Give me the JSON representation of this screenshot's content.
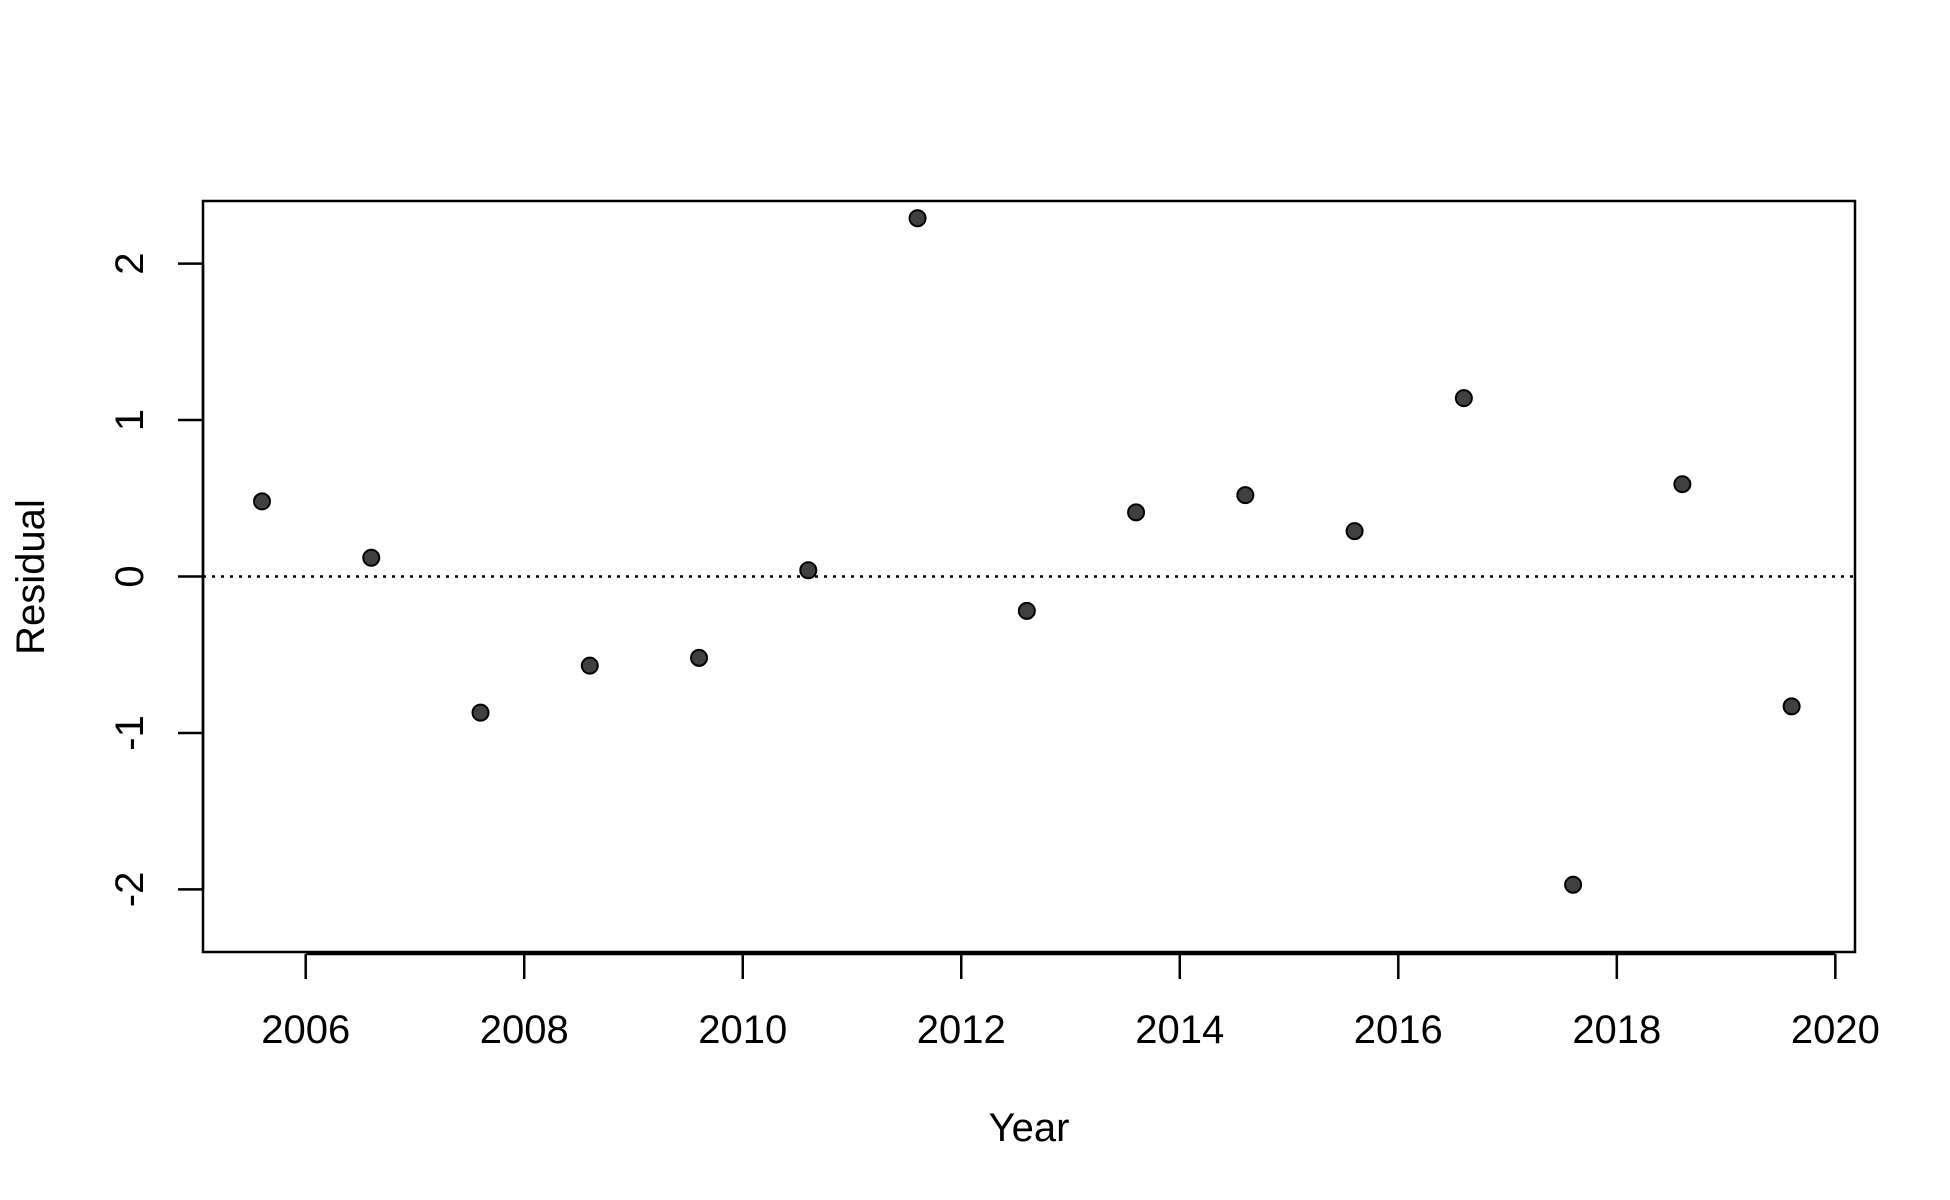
{
  "chart_data": {
    "type": "scatter",
    "title": "",
    "xlabel": "Year",
    "ylabel": "Residual",
    "xlim": [
      2005.06,
      2020.18
    ],
    "ylim": [
      -2.4,
      2.4
    ],
    "x_ticks": [
      2006,
      2008,
      2010,
      2012,
      2014,
      2016,
      2018,
      2020
    ],
    "x_tick_labels": [
      "2006",
      "2008",
      "2010",
      "2012",
      "2014",
      "2016",
      "2018",
      "2020"
    ],
    "y_ticks": [
      -2,
      -1,
      0,
      1,
      2
    ],
    "y_tick_labels": [
      "-2",
      "-1",
      "0",
      "1",
      "2"
    ],
    "reference_line": {
      "y": 0,
      "style": "dotted"
    },
    "grid": false,
    "legend": "none",
    "point_color": "#404040",
    "series": [
      {
        "x": [
          2005.6,
          2006.6,
          2007.6,
          2008.6,
          2009.6,
          2010.6,
          2011.6,
          2012.6,
          2013.6,
          2014.6,
          2015.6,
          2016.6,
          2017.6,
          2018.6,
          2019.6
        ],
        "y": [
          0.48,
          0.12,
          -0.87,
          -0.57,
          -0.52,
          0.04,
          2.29,
          -0.22,
          0.41,
          0.52,
          0.29,
          1.14,
          -1.97,
          0.59,
          -0.83
        ]
      }
    ]
  }
}
